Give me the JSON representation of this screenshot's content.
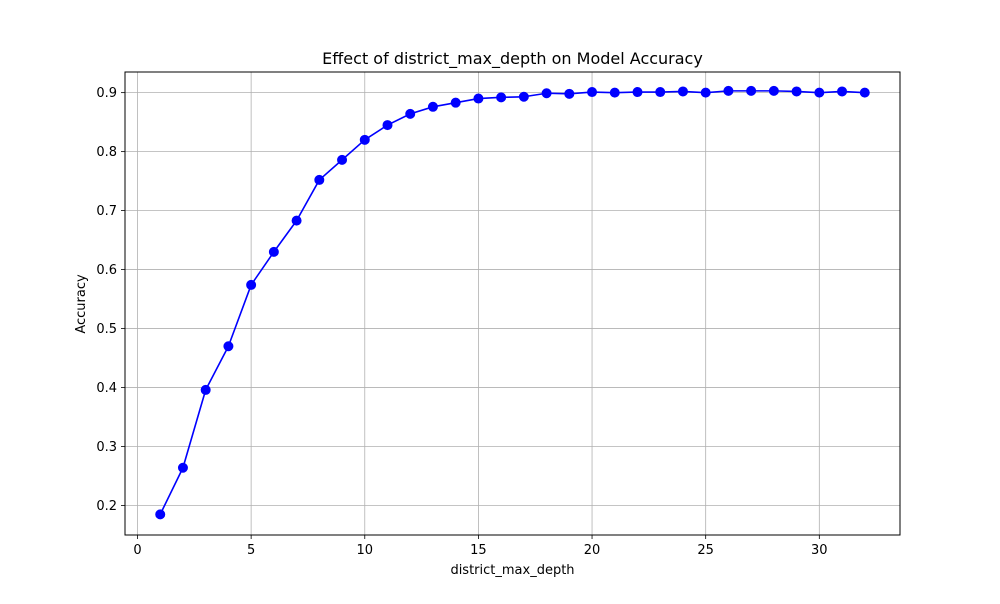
{
  "chart_data": {
    "type": "line",
    "title": "Effect of district_max_depth on Model Accuracy",
    "xlabel": "district_max_depth",
    "ylabel": "Accuracy",
    "xlim": [
      -0.55,
      33.55
    ],
    "ylim": [
      0.15,
      0.935
    ],
    "xticks": [
      0,
      5,
      10,
      15,
      20,
      25,
      30
    ],
    "yticks": [
      0.2,
      0.3,
      0.4,
      0.5,
      0.6,
      0.7,
      0.8,
      0.9
    ],
    "grid": true,
    "legend": "none",
    "series": [
      {
        "color": "#0000ff",
        "marker": "circle",
        "x": [
          1,
          2,
          3,
          4,
          5,
          6,
          7,
          8,
          9,
          10,
          11,
          12,
          13,
          14,
          15,
          16,
          17,
          18,
          19,
          20,
          21,
          22,
          23,
          24,
          25,
          26,
          27,
          28,
          29,
          30,
          31,
          32
        ],
        "y": [
          0.185,
          0.264,
          0.396,
          0.47,
          0.574,
          0.63,
          0.683,
          0.752,
          0.786,
          0.82,
          0.845,
          0.864,
          0.876,
          0.883,
          0.89,
          0.892,
          0.893,
          0.899,
          0.898,
          0.901,
          0.9,
          0.901,
          0.901,
          0.902,
          0.9,
          0.903,
          0.903,
          0.903,
          0.902,
          0.9,
          0.902,
          0.9
        ]
      }
    ]
  }
}
